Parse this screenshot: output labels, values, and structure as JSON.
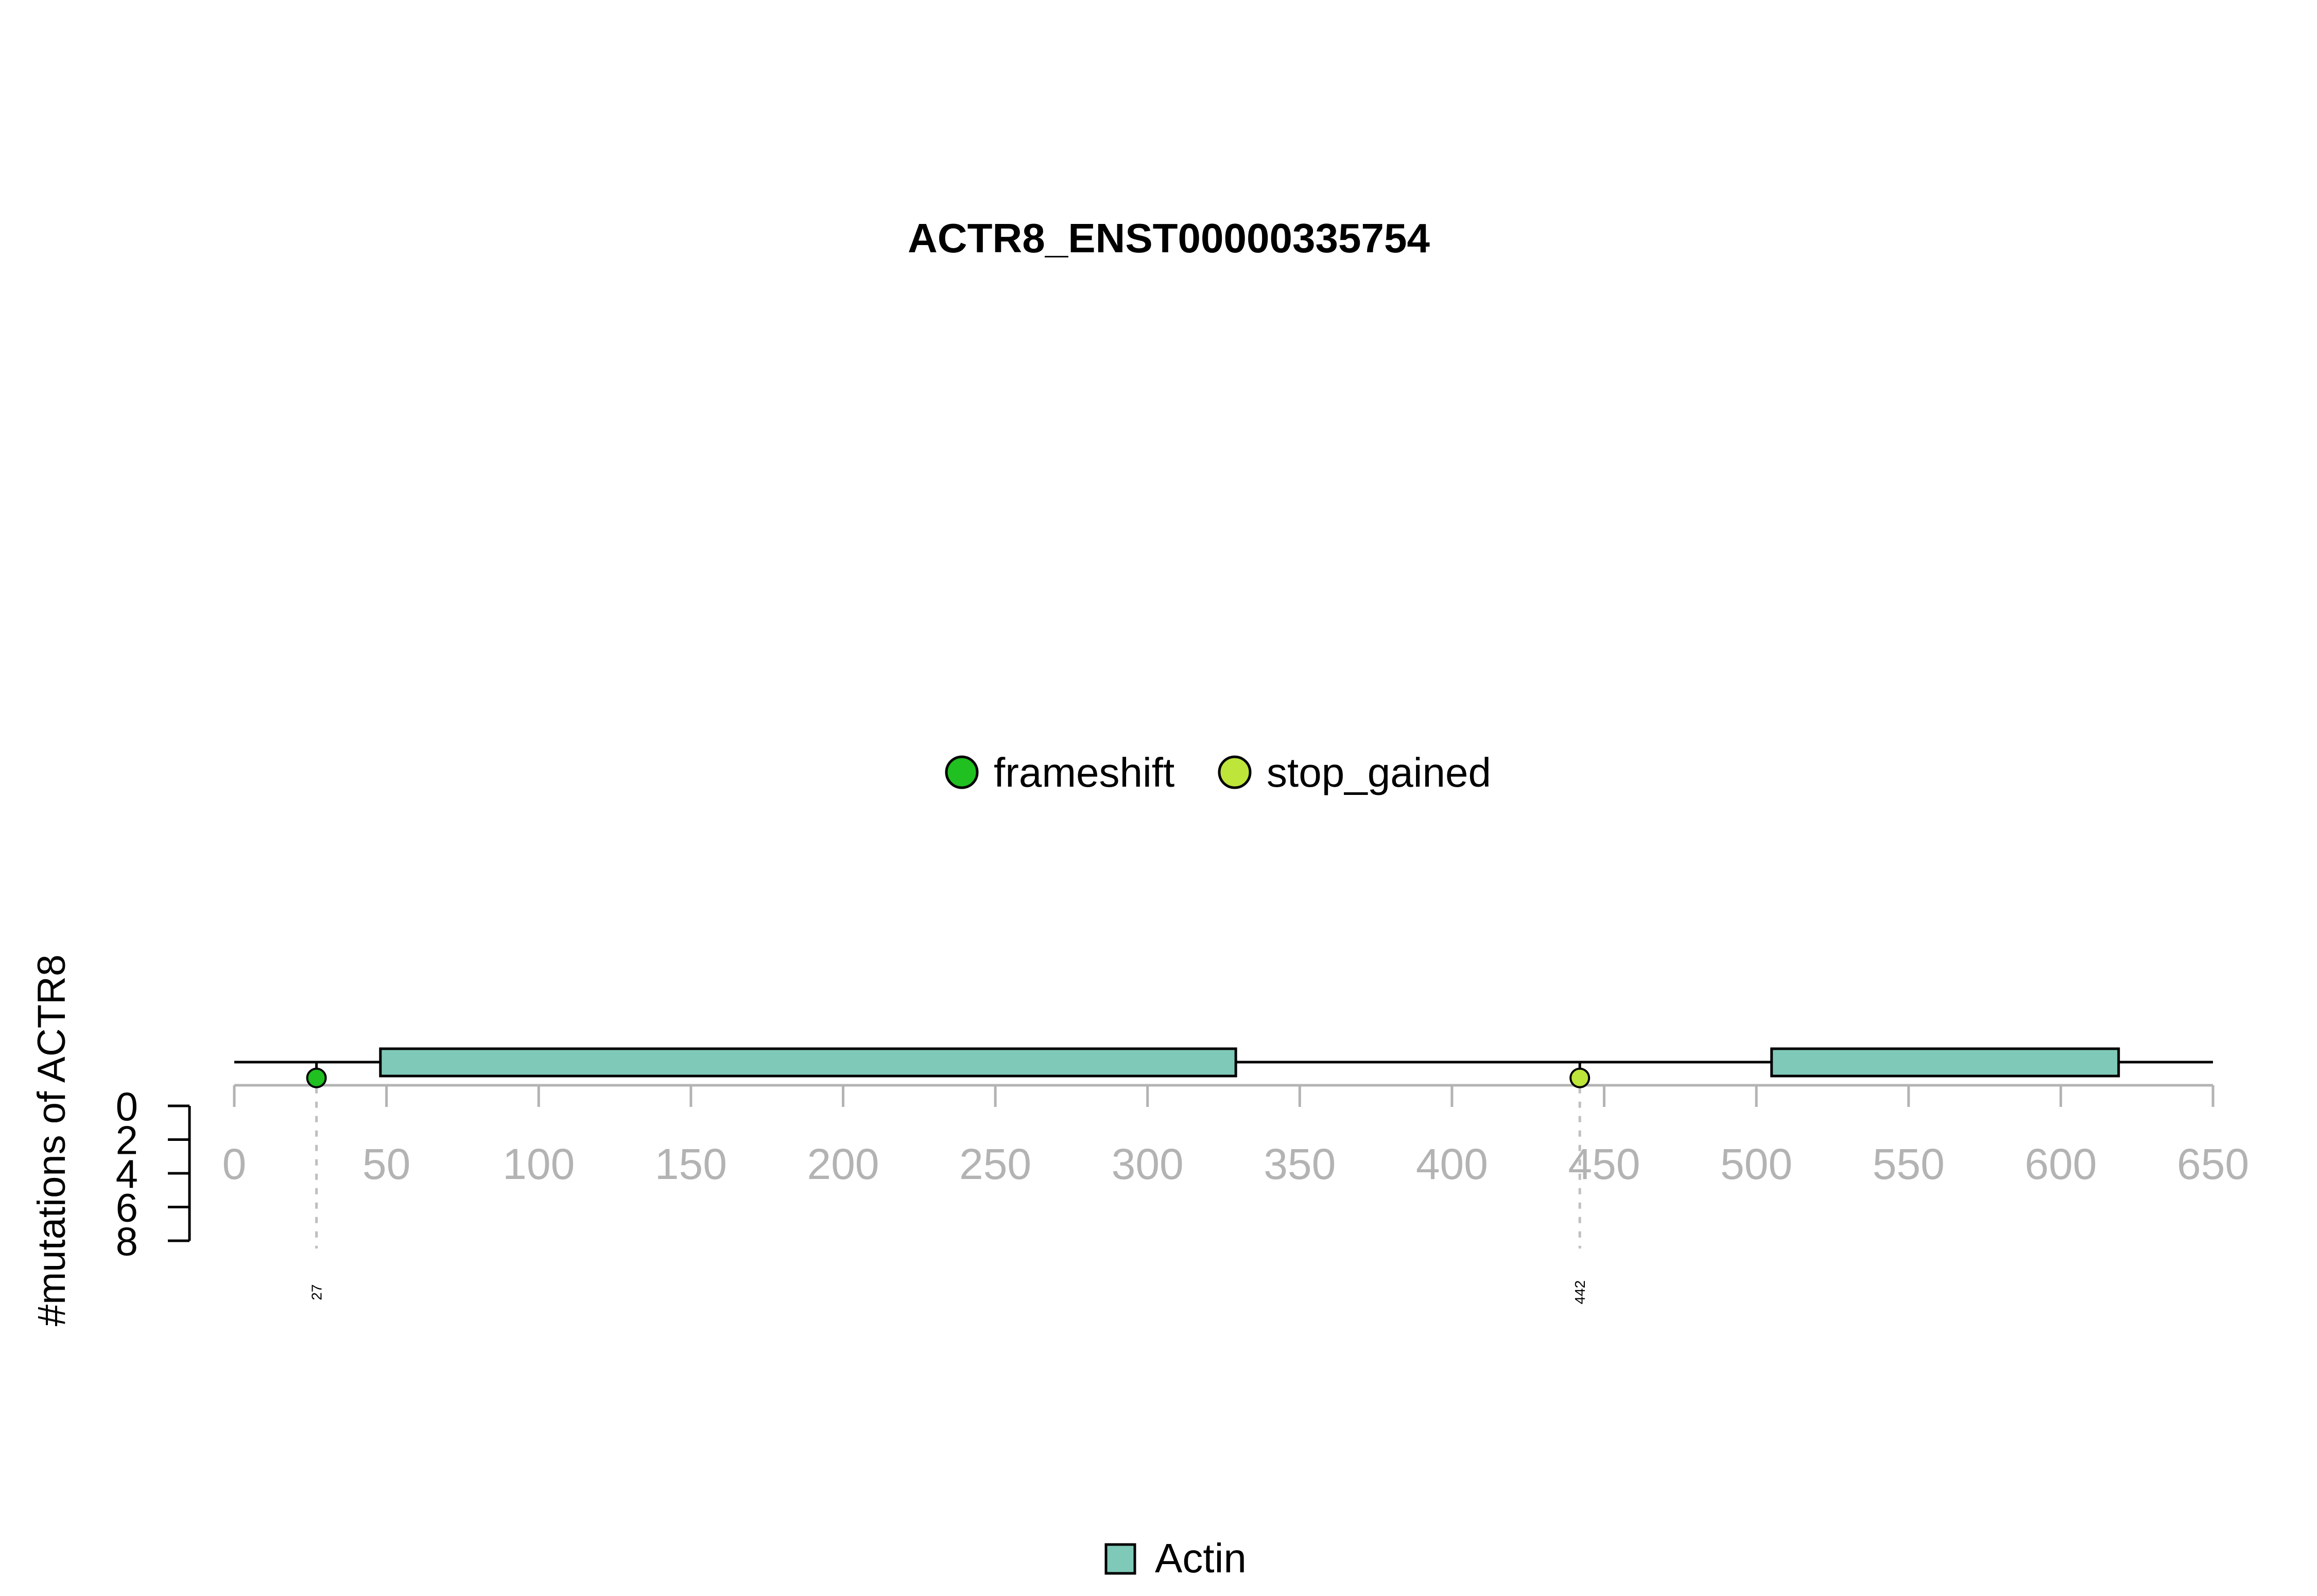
{
  "chart_data": {
    "type": "lollipop",
    "title": "ACTR8_ENST00000335754",
    "ylabel": "#mutations of ACTR8",
    "xlabel": "",
    "xlim": [
      0,
      650
    ],
    "x_ticks": [
      0,
      50,
      100,
      150,
      200,
      250,
      300,
      350,
      400,
      450,
      500,
      550,
      600,
      650
    ],
    "ylim": [
      0,
      8
    ],
    "y_ticks": [
      0,
      2,
      4,
      6,
      8
    ],
    "protein_length": 650,
    "domains": [
      {
        "name": "Actin",
        "start": 48,
        "end": 329
      },
      {
        "name": "Actin",
        "start": 505,
        "end": 619
      }
    ],
    "mutations": [
      {
        "position": 27,
        "count": 1,
        "type": "frameshift",
        "label": "27"
      },
      {
        "position": 442,
        "count": 1,
        "type": "stop_gained",
        "label": "442"
      }
    ],
    "mutation_legend": [
      {
        "type": "frameshift",
        "label": "frameshift",
        "color": "#1fc01f"
      },
      {
        "type": "stop_gained",
        "label": "stop_gained",
        "color": "#bde53a"
      }
    ],
    "domain_legend": [
      {
        "name": "Actin",
        "label": "Actin",
        "color": "#7fc9b8"
      }
    ],
    "colors": {
      "axis_gray": "#b3b3b3",
      "backbone": "#000000",
      "guide_dotted": "#bfbfbf"
    }
  }
}
